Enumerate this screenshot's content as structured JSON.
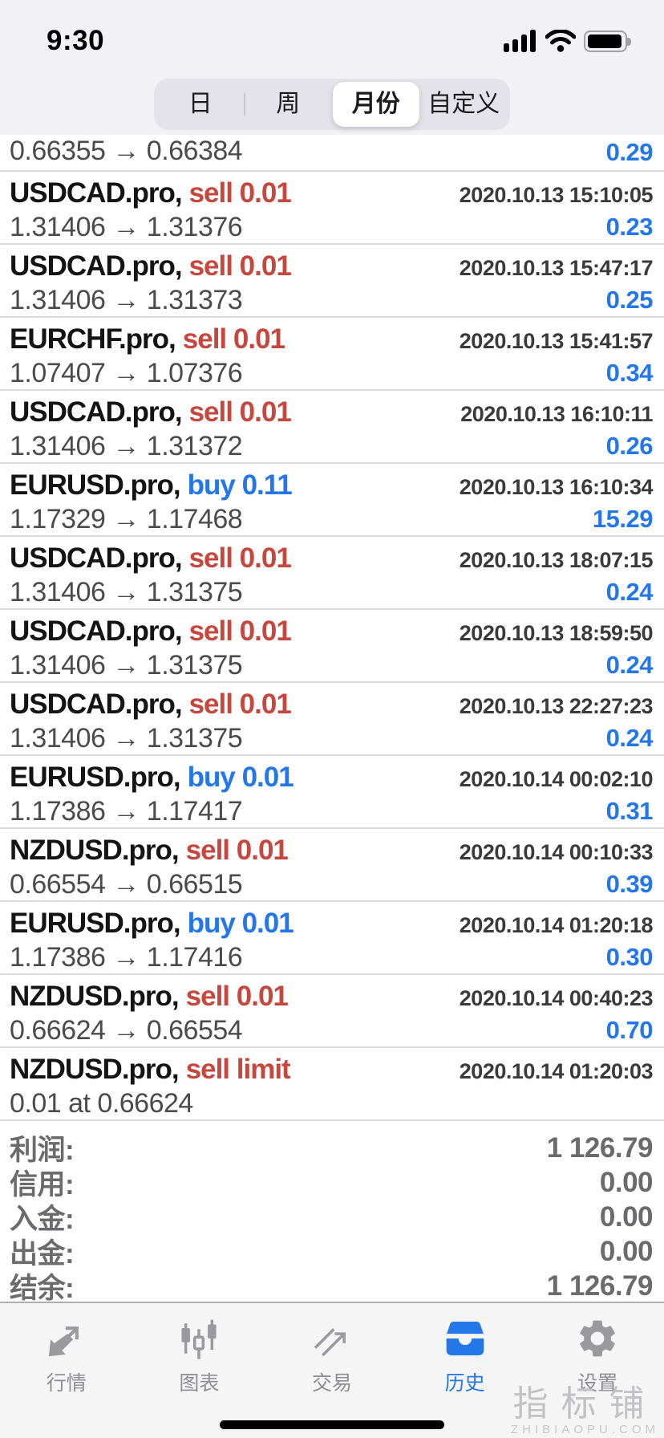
{
  "colors": {
    "accent_blue": "#2377E8",
    "sell_red": "#C6473E"
  },
  "status_bar": {
    "time": "9:30"
  },
  "filter": {
    "options": [
      "日",
      "周",
      "月份",
      "自定义"
    ],
    "selected_index": 2
  },
  "partial_row": {
    "price": "0.66355 → 0.66384",
    "profit": "0.29"
  },
  "trades": [
    {
      "symbol": "USDCAD.pro,",
      "action": "sell 0.01",
      "direction": "sell",
      "datetime": "2020.10.13 15:10:05",
      "detail": "1.31406 → 1.31376",
      "profit": "0.23"
    },
    {
      "symbol": "USDCAD.pro,",
      "action": "sell 0.01",
      "direction": "sell",
      "datetime": "2020.10.13 15:47:17",
      "detail": "1.31406 → 1.31373",
      "profit": "0.25"
    },
    {
      "symbol": "EURCHF.pro,",
      "action": "sell 0.01",
      "direction": "sell",
      "datetime": "2020.10.13 15:41:57",
      "detail": "1.07407 → 1.07376",
      "profit": "0.34"
    },
    {
      "symbol": "USDCAD.pro,",
      "action": "sell 0.01",
      "direction": "sell",
      "datetime": "2020.10.13 16:10:11",
      "detail": "1.31406 → 1.31372",
      "profit": "0.26"
    },
    {
      "symbol": "EURUSD.pro,",
      "action": "buy 0.11",
      "direction": "buy",
      "datetime": "2020.10.13 16:10:34",
      "detail": "1.17329 → 1.17468",
      "profit": "15.29"
    },
    {
      "symbol": "USDCAD.pro,",
      "action": "sell 0.01",
      "direction": "sell",
      "datetime": "2020.10.13 18:07:15",
      "detail": "1.31406 → 1.31375",
      "profit": "0.24"
    },
    {
      "symbol": "USDCAD.pro,",
      "action": "sell 0.01",
      "direction": "sell",
      "datetime": "2020.10.13 18:59:50",
      "detail": "1.31406 → 1.31375",
      "profit": "0.24"
    },
    {
      "symbol": "USDCAD.pro,",
      "action": "sell 0.01",
      "direction": "sell",
      "datetime": "2020.10.13 22:27:23",
      "detail": "1.31406 → 1.31375",
      "profit": "0.24"
    },
    {
      "symbol": "EURUSD.pro,",
      "action": "buy 0.01",
      "direction": "buy",
      "datetime": "2020.10.14 00:02:10",
      "detail": "1.17386 → 1.17417",
      "profit": "0.31"
    },
    {
      "symbol": "NZDUSD.pro,",
      "action": "sell 0.01",
      "direction": "sell",
      "datetime": "2020.10.14 00:10:33",
      "detail": "0.66554 → 0.66515",
      "profit": "0.39"
    },
    {
      "symbol": "EURUSD.pro,",
      "action": "buy 0.01",
      "direction": "buy",
      "datetime": "2020.10.14 01:20:18",
      "detail": "1.17386 → 1.17416",
      "profit": "0.30"
    },
    {
      "symbol": "NZDUSD.pro,",
      "action": "sell 0.01",
      "direction": "sell",
      "datetime": "2020.10.14 00:40:23",
      "detail": "0.66624 → 0.66554",
      "profit": "0.70"
    },
    {
      "symbol": "NZDUSD.pro,",
      "action": "sell limit",
      "direction": "sell",
      "datetime": "2020.10.14 01:20:03",
      "detail": "0.01 at 0.66624",
      "profit": ""
    }
  ],
  "summary": {
    "rows": [
      {
        "label": "利润:",
        "value": "1 126.79"
      },
      {
        "label": "信用:",
        "value": "0.00"
      },
      {
        "label": "入金:",
        "value": "0.00"
      },
      {
        "label": "出金:",
        "value": "0.00"
      },
      {
        "label": "结余:",
        "value": "1 126.79"
      }
    ]
  },
  "tabbar": {
    "items": [
      {
        "label": "行情",
        "icon": "trending-arrows-icon",
        "active": false
      },
      {
        "label": "图表",
        "icon": "candlestick-chart-icon",
        "active": false
      },
      {
        "label": "交易",
        "icon": "trade-line-icon",
        "active": false
      },
      {
        "label": "历史",
        "icon": "history-tray-icon",
        "active": true
      },
      {
        "label": "设置",
        "icon": "settings-gear-icon",
        "active": false
      }
    ]
  },
  "watermark": {
    "text": "指标铺",
    "subtext": "ZHIBIAOPU.COM"
  }
}
